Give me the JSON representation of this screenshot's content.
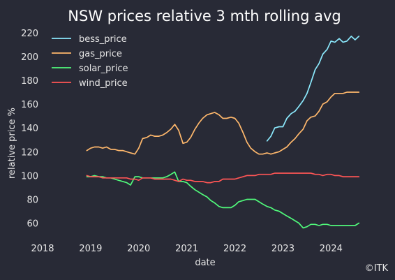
{
  "chart_data": {
    "type": "line",
    "title": "NSW prices relative 3 mth rolling avg",
    "xlabel": "date",
    "ylabel": "relative price %",
    "x_ticks": [
      "2018",
      "2019",
      "2020",
      "2021",
      "2022",
      "2023",
      "2024"
    ],
    "y_ticks": [
      60,
      80,
      100,
      120,
      140,
      160,
      180,
      200,
      220
    ],
    "xlim": [
      2018.0,
      2024.75
    ],
    "ylim": [
      48,
      224
    ],
    "grid": false,
    "legend_position": "top-left",
    "credit": "©ITK",
    "series": [
      {
        "name": "bess_price",
        "color": "#8be9fd",
        "x": [
          2022.67,
          2022.75,
          2022.83,
          2022.92,
          2023.0,
          2023.08,
          2023.17,
          2023.25,
          2023.33,
          2023.42,
          2023.5,
          2023.58,
          2023.67,
          2023.75,
          2023.83,
          2023.92,
          2024.0,
          2024.08,
          2024.17,
          2024.25,
          2024.33,
          2024.42,
          2024.5,
          2024.58
        ],
        "y": [
          129,
          133,
          140,
          141,
          141,
          148,
          152,
          154,
          158,
          163,
          169,
          178,
          189,
          194,
          202,
          206,
          213,
          212,
          215,
          212,
          213,
          217,
          214,
          217
        ]
      },
      {
        "name": "gas_price",
        "color": "#ffb86c",
        "x": [
          2018.92,
          2019.0,
          2019.08,
          2019.17,
          2019.25,
          2019.33,
          2019.42,
          2019.5,
          2019.58,
          2019.67,
          2019.75,
          2019.83,
          2019.92,
          2020.0,
          2020.08,
          2020.17,
          2020.25,
          2020.33,
          2020.42,
          2020.5,
          2020.58,
          2020.67,
          2020.75,
          2020.83,
          2020.92,
          2021.0,
          2021.08,
          2021.17,
          2021.25,
          2021.33,
          2021.42,
          2021.5,
          2021.58,
          2021.67,
          2021.75,
          2021.83,
          2021.92,
          2022.0,
          2022.08,
          2022.17,
          2022.25,
          2022.33,
          2022.42,
          2022.5,
          2022.58,
          2022.67,
          2022.75,
          2022.83,
          2022.92,
          2023.0,
          2023.08,
          2023.17,
          2023.25,
          2023.33,
          2023.42,
          2023.5,
          2023.58,
          2023.67,
          2023.75,
          2023.83,
          2023.92,
          2024.0,
          2024.08,
          2024.17,
          2024.25,
          2024.33,
          2024.42,
          2024.5,
          2024.58
        ],
        "y": [
          121,
          123,
          124,
          124,
          123,
          124,
          122,
          122,
          121,
          121,
          120,
          119,
          118,
          123,
          131,
          132,
          134,
          133,
          133,
          134,
          136,
          139,
          143,
          138,
          127,
          128,
          132,
          139,
          144,
          148,
          151,
          152,
          153,
          151,
          148,
          148,
          149,
          148,
          144,
          136,
          128,
          123,
          120,
          118,
          118,
          119,
          118,
          119,
          120,
          122,
          124,
          128,
          131,
          135,
          139,
          146,
          149,
          150,
          154,
          160,
          162,
          166,
          169,
          169,
          169,
          170,
          170,
          170,
          170
        ]
      },
      {
        "name": "solar_price",
        "color": "#50fa7b",
        "x": [
          2018.92,
          2019.0,
          2019.08,
          2019.17,
          2019.25,
          2019.33,
          2019.42,
          2019.5,
          2019.58,
          2019.67,
          2019.75,
          2019.83,
          2019.92,
          2020.0,
          2020.08,
          2020.17,
          2020.25,
          2020.33,
          2020.42,
          2020.5,
          2020.58,
          2020.67,
          2020.75,
          2020.83,
          2020.92,
          2021.0,
          2021.08,
          2021.17,
          2021.25,
          2021.33,
          2021.42,
          2021.5,
          2021.58,
          2021.67,
          2021.75,
          2021.83,
          2021.92,
          2022.0,
          2022.08,
          2022.17,
          2022.25,
          2022.33,
          2022.42,
          2022.5,
          2022.58,
          2022.67,
          2022.75,
          2022.83,
          2022.92,
          2023.0,
          2023.08,
          2023.17,
          2023.25,
          2023.33,
          2023.42,
          2023.5,
          2023.58,
          2023.67,
          2023.75,
          2023.83,
          2023.92,
          2024.0,
          2024.08,
          2024.17,
          2024.25,
          2024.33,
          2024.42,
          2024.5,
          2024.58
        ],
        "y": [
          99,
          99,
          100,
          99,
          99,
          98,
          98,
          97,
          96,
          95,
          94,
          92,
          99,
          99,
          98,
          98,
          98,
          98,
          98,
          98,
          99,
          101,
          103,
          95,
          95,
          94,
          91,
          88,
          86,
          84,
          82,
          79,
          77,
          74,
          73,
          73,
          73,
          75,
          78,
          79,
          80,
          80,
          80,
          78,
          76,
          74,
          73,
          71,
          70,
          68,
          66,
          64,
          62,
          60,
          56,
          57,
          59,
          59,
          58,
          59,
          59,
          58,
          58,
          58,
          58,
          58,
          58,
          58,
          60
        ]
      },
      {
        "name": "wind_price",
        "color": "#ff5555",
        "x": [
          2018.92,
          2019.0,
          2019.08,
          2019.17,
          2019.25,
          2019.33,
          2019.42,
          2019.5,
          2019.58,
          2019.67,
          2019.75,
          2019.83,
          2019.92,
          2020.0,
          2020.08,
          2020.17,
          2020.25,
          2020.33,
          2020.42,
          2020.5,
          2020.58,
          2020.67,
          2020.75,
          2020.83,
          2020.92,
          2021.0,
          2021.08,
          2021.17,
          2021.25,
          2021.33,
          2021.42,
          2021.5,
          2021.58,
          2021.67,
          2021.75,
          2021.83,
          2021.92,
          2022.0,
          2022.08,
          2022.17,
          2022.25,
          2022.33,
          2022.42,
          2022.5,
          2022.58,
          2022.67,
          2022.75,
          2022.83,
          2022.92,
          2023.0,
          2023.08,
          2023.17,
          2023.25,
          2023.33,
          2023.42,
          2023.5,
          2023.58,
          2023.67,
          2023.75,
          2023.83,
          2023.92,
          2024.0,
          2024.08,
          2024.17,
          2024.25,
          2024.33,
          2024.42,
          2024.5,
          2024.58
        ],
        "y": [
          100,
          99,
          99,
          99,
          98,
          98,
          98,
          98,
          98,
          98,
          98,
          97,
          97,
          96,
          98,
          98,
          98,
          97,
          97,
          97,
          97,
          97,
          96,
          95,
          97,
          96,
          96,
          95,
          95,
          95,
          94,
          94,
          95,
          95,
          97,
          97,
          97,
          97,
          98,
          99,
          100,
          100,
          100,
          101,
          101,
          101,
          101,
          102,
          102,
          102,
          102,
          102,
          102,
          102,
          102,
          102,
          102,
          101,
          101,
          100,
          101,
          101,
          100,
          100,
          99,
          99,
          99,
          99,
          99
        ]
      }
    ]
  }
}
